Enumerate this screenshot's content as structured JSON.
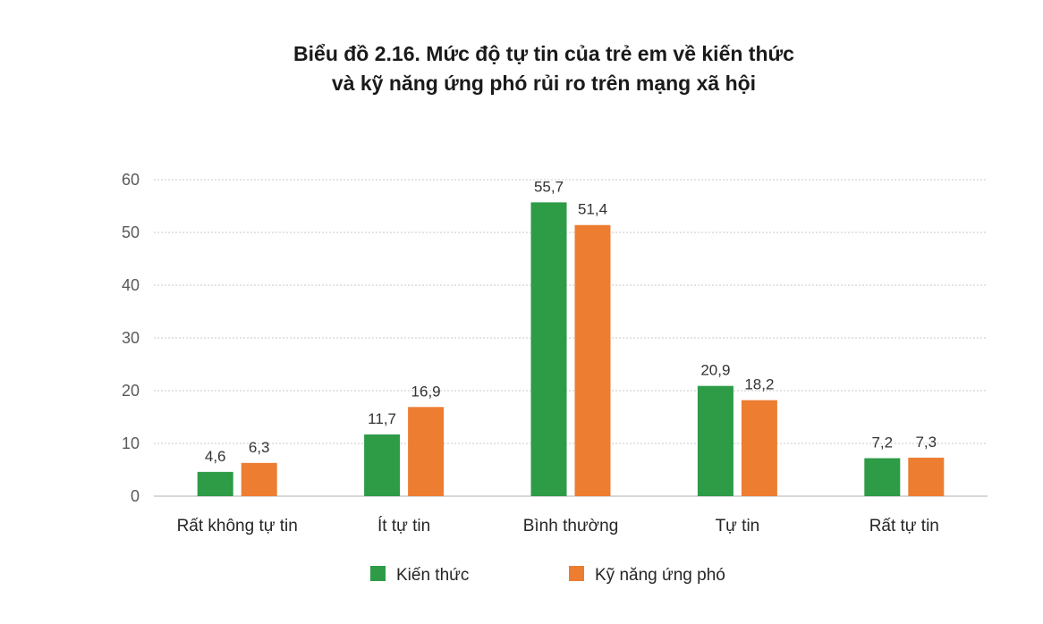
{
  "chart_data": {
    "type": "bar",
    "title": "Biểu đồ 2.16. Mức độ tự tin của trẻ em về kiến thức",
    "subtitle": "và kỹ năng ứng phó rủi ro trên mạng xã hội",
    "categories": [
      "Rất không tự tin",
      "Ít tự tin",
      "Bình thường",
      "Tự tin",
      "Rất tự tin"
    ],
    "series": [
      {
        "name": "Kiến thức",
        "color": "#2e9b47",
        "values": [
          4.6,
          11.7,
          55.7,
          20.9,
          7.2
        ],
        "labels": [
          "4,6",
          "11,7",
          "55,7",
          "20,9",
          "7,2"
        ]
      },
      {
        "name": "Kỹ năng ứng phó",
        "color": "#ed7d31",
        "values": [
          6.3,
          16.9,
          51.4,
          18.2,
          7.3
        ],
        "labels": [
          "6,3",
          "16,9",
          "51,4",
          "18,2",
          "7,3"
        ]
      }
    ],
    "yticks": [
      "0",
      "10",
      "20",
      "30",
      "40",
      "50",
      "60"
    ],
    "ylim": [
      0,
      60
    ],
    "grid": true,
    "legend": "bottom"
  }
}
